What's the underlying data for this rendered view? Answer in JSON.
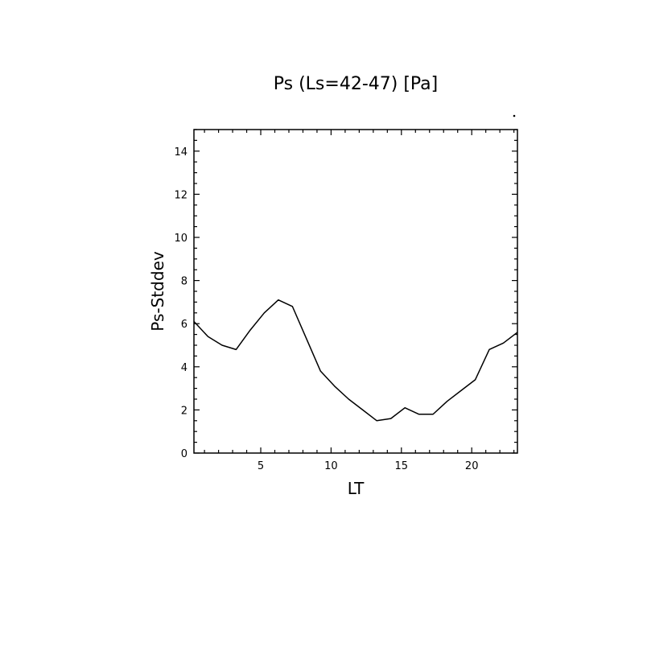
{
  "chart_data": {
    "type": "line",
    "title": "Ps (Ls=42-47) [Pa]",
    "xlabel": "LT",
    "ylabel": "Ps-Stddev",
    "xlim": [
      0.25,
      23.25
    ],
    "ylim": [
      0,
      15
    ],
    "x_ticks": [
      5,
      10,
      15,
      20
    ],
    "y_ticks": [
      0,
      2,
      4,
      6,
      8,
      10,
      12,
      14
    ],
    "grid": false,
    "line_color": "#000000",
    "series": [
      {
        "x": [
          0.25,
          1.25,
          2.25,
          3.25,
          4.25,
          5.25,
          6.25,
          7.25,
          8.25,
          9.25,
          10.25,
          11.25,
          12.25,
          13.25,
          14.25,
          15.25,
          16.25,
          17.25,
          18.25,
          19.25,
          20.25,
          21.25,
          22.25,
          23.25
        ],
        "y": [
          6.1,
          5.4,
          5.0,
          4.8,
          5.7,
          6.5,
          7.1,
          6.8,
          5.3,
          3.8,
          3.1,
          2.5,
          2.0,
          1.5,
          1.6,
          2.1,
          1.8,
          1.8,
          2.4,
          2.9,
          3.4,
          4.8,
          5.1,
          5.6
        ]
      }
    ]
  }
}
